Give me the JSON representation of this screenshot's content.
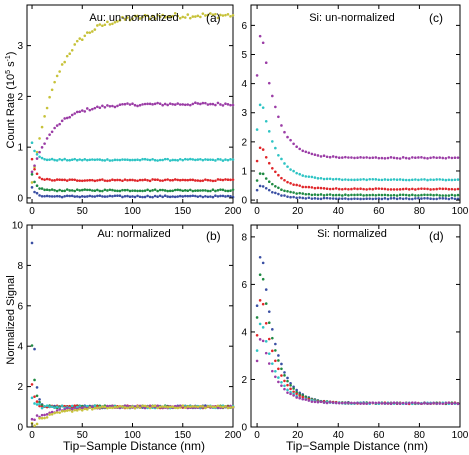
{
  "figure": {
    "colors": {
      "blue": "#3a4fa3",
      "green": "#1f8a43",
      "red": "#e0262a",
      "cyan": "#2ec4c4",
      "magenta": "#9b3da6",
      "olive": "#c7c23a"
    }
  },
  "chart_data": [
    {
      "id": "a",
      "type": "scatter",
      "panel_label": "(a)",
      "title": "Au: un-normalized",
      "xlabel": "",
      "ylabel": "Count Rate (10^5 s^-1)",
      "ylabel_text": "Count Rate (10",
      "ylabel_sup1": "5",
      "ylabel_mid": " s",
      "ylabel_sup2": "-1",
      "ylabel_end": ")",
      "xlim": [
        -5,
        200
      ],
      "ylim": [
        -0.1,
        3.8
      ],
      "xticks": [
        "0",
        "50",
        "100",
        "150",
        "200"
      ],
      "yticks": [
        "0",
        "1",
        "2",
        "3"
      ],
      "series": [
        {
          "color": "olive",
          "model": {
            "kind": "rise",
            "start": 0.3,
            "end": 3.6,
            "tau": 25
          }
        },
        {
          "color": "magenta",
          "model": {
            "kind": "rise",
            "start": 0.5,
            "end": 1.85,
            "tau": 22
          }
        },
        {
          "color": "cyan",
          "model": {
            "kind": "spike",
            "peak": 1.1,
            "end": 0.75,
            "tau": 4
          }
        },
        {
          "color": "red",
          "model": {
            "kind": "decay",
            "start": 0.75,
            "end": 0.35,
            "tau": 4
          }
        },
        {
          "color": "green",
          "model": {
            "kind": "decay",
            "start": 0.45,
            "end": 0.15,
            "tau": 4
          }
        },
        {
          "color": "blue",
          "model": {
            "kind": "decay",
            "start": 0.2,
            "end": 0.03,
            "tau": 4
          }
        }
      ]
    },
    {
      "id": "b",
      "type": "scatter",
      "panel_label": "(b)",
      "title": "Au: normalized",
      "xlabel": "Tip−Sample Distance (nm)",
      "ylabel": "Normalized Signal",
      "xlim": [
        -5,
        200
      ],
      "ylim": [
        0,
        10
      ],
      "xticks": [
        "0",
        "50",
        "100",
        "150",
        "200"
      ],
      "yticks": [
        "0",
        "2",
        "4",
        "6",
        "8",
        "10"
      ],
      "series": [
        {
          "color": "blue",
          "model": {
            "kind": "decay",
            "start": 9.0,
            "end": 1.0,
            "tau": 2.5
          }
        },
        {
          "color": "green",
          "model": {
            "kind": "decay",
            "start": 4.0,
            "end": 1.0,
            "tau": 3
          }
        },
        {
          "color": "red",
          "model": {
            "kind": "decay",
            "start": 2.0,
            "end": 1.0,
            "tau": 3
          }
        },
        {
          "color": "cyan",
          "model": {
            "kind": "decay",
            "start": 1.5,
            "end": 1.0,
            "tau": 3
          }
        },
        {
          "color": "magenta",
          "model": {
            "kind": "rise",
            "start": 0.3,
            "end": 1.0,
            "tau": 20
          }
        },
        {
          "color": "olive",
          "model": {
            "kind": "rise",
            "start": 0.1,
            "end": 1.0,
            "tau": 25
          }
        }
      ]
    },
    {
      "id": "c",
      "type": "scatter",
      "panel_label": "(c)",
      "title": "Si: un-normalized",
      "xlabel": "",
      "ylabel": "",
      "xlim": [
        -3,
        100
      ],
      "ylim": [
        -0.1,
        6.7
      ],
      "xticks": [
        "0",
        "20",
        "40",
        "60",
        "80",
        "100"
      ],
      "yticks": [
        "0",
        "1",
        "2",
        "3",
        "4",
        "5",
        "6"
      ],
      "series": [
        {
          "color": "magenta",
          "model": {
            "kind": "si",
            "peak": 6.1,
            "end": 1.45,
            "tau": 7
          }
        },
        {
          "color": "cyan",
          "model": {
            "kind": "si",
            "peak": 3.6,
            "end": 0.7,
            "tau": 7
          }
        },
        {
          "color": "red",
          "model": {
            "kind": "si",
            "peak": 1.95,
            "end": 0.38,
            "tau": 7
          }
        },
        {
          "color": "green",
          "model": {
            "kind": "si",
            "peak": 1.0,
            "end": 0.17,
            "tau": 7
          }
        },
        {
          "color": "blue",
          "model": {
            "kind": "si",
            "peak": 0.55,
            "end": 0.05,
            "tau": 7
          }
        }
      ]
    },
    {
      "id": "d",
      "type": "scatter",
      "panel_label": "(d)",
      "title": "Si: normalized",
      "xlabel": "Tip−Sample Distance (nm)",
      "ylabel": "",
      "xlim": [
        -3,
        100
      ],
      "ylim": [
        0,
        8.5
      ],
      "xticks": [
        "0",
        "20",
        "40",
        "60",
        "80",
        "100"
      ],
      "yticks": [
        "0",
        "2",
        "4",
        "6",
        "8"
      ],
      "series": [
        {
          "color": "blue",
          "model": {
            "kind": "si",
            "peak": 7.8,
            "end": 1.0,
            "tau": 7
          }
        },
        {
          "color": "green",
          "model": {
            "kind": "si",
            "peak": 7.0,
            "end": 1.0,
            "tau": 7
          }
        },
        {
          "color": "red",
          "model": {
            "kind": "si",
            "peak": 5.8,
            "end": 1.0,
            "tau": 7
          }
        },
        {
          "color": "cyan",
          "model": {
            "kind": "si",
            "peak": 4.7,
            "end": 1.0,
            "tau": 7
          }
        },
        {
          "color": "magenta",
          "model": {
            "kind": "si",
            "peak": 4.0,
            "end": 1.0,
            "tau": 7
          }
        }
      ]
    }
  ]
}
